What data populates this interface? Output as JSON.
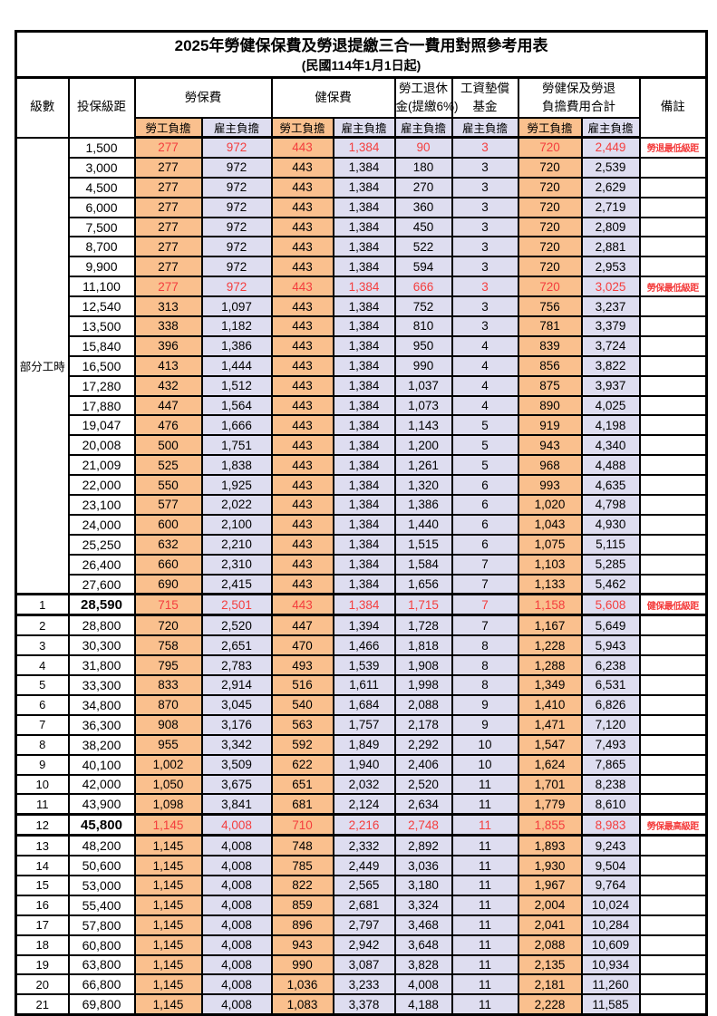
{
  "title": "2025年勞健保保費及勞退提繳三合一費用對照參考用表",
  "subtitle": "(民國114年1月1日起)",
  "header": {
    "level_label": "級數",
    "bracket_label": "投保級距",
    "labor_insurance_label": "勞保費",
    "health_insurance_label": "健保費",
    "pension_line1": "勞工退休",
    "pension_line2": "金(提繳6%)",
    "wage_fund_line1": "工資墊償",
    "wage_fund_line2": "基金",
    "total_line1": "勞健保及勞退",
    "total_line2": "負擔費用合計",
    "employee_label": "勞工負擔",
    "employer_label": "雇主負擔",
    "remark_label": "備註"
  },
  "part_time": {
    "label": "部分工時",
    "rowspan": 23
  },
  "colors": {
    "employee_bg": "#FAC08E",
    "employer_bg": "#DEDDF0",
    "highlight_red": "#f43d3d",
    "grid": "#000000"
  },
  "rows": [
    {
      "level": null,
      "bracket": "1,500",
      "values": [
        "277",
        "972",
        "443",
        "1,384",
        "90",
        "3",
        "720",
        "2,449"
      ],
      "remark": "勞退最低級距",
      "red": true,
      "thick": false,
      "bold": false
    },
    {
      "level": null,
      "bracket": "3,000",
      "values": [
        "277",
        "972",
        "443",
        "1,384",
        "180",
        "3",
        "720",
        "2,539"
      ],
      "remark": "",
      "red": false,
      "thick": false,
      "bold": false
    },
    {
      "level": null,
      "bracket": "4,500",
      "values": [
        "277",
        "972",
        "443",
        "1,384",
        "270",
        "3",
        "720",
        "2,629"
      ],
      "remark": "",
      "red": false,
      "thick": false,
      "bold": false
    },
    {
      "level": null,
      "bracket": "6,000",
      "values": [
        "277",
        "972",
        "443",
        "1,384",
        "360",
        "3",
        "720",
        "2,719"
      ],
      "remark": "",
      "red": false,
      "thick": false,
      "bold": false
    },
    {
      "level": null,
      "bracket": "7,500",
      "values": [
        "277",
        "972",
        "443",
        "1,384",
        "450",
        "3",
        "720",
        "2,809"
      ],
      "remark": "",
      "red": false,
      "thick": false,
      "bold": false
    },
    {
      "level": null,
      "bracket": "8,700",
      "values": [
        "277",
        "972",
        "443",
        "1,384",
        "522",
        "3",
        "720",
        "2,881"
      ],
      "remark": "",
      "red": false,
      "thick": false,
      "bold": false
    },
    {
      "level": null,
      "bracket": "9,900",
      "values": [
        "277",
        "972",
        "443",
        "1,384",
        "594",
        "3",
        "720",
        "2,953"
      ],
      "remark": "",
      "red": false,
      "thick": false,
      "bold": false
    },
    {
      "level": null,
      "bracket": "11,100",
      "values": [
        "277",
        "972",
        "443",
        "1,384",
        "666",
        "3",
        "720",
        "3,025"
      ],
      "remark": "勞保最低級距",
      "red": true,
      "thick": false,
      "bold": false
    },
    {
      "level": null,
      "bracket": "12,540",
      "values": [
        "313",
        "1,097",
        "443",
        "1,384",
        "752",
        "3",
        "756",
        "3,237"
      ],
      "remark": "",
      "red": false,
      "thick": false,
      "bold": false
    },
    {
      "level": null,
      "bracket": "13,500",
      "values": [
        "338",
        "1,182",
        "443",
        "1,384",
        "810",
        "3",
        "781",
        "3,379"
      ],
      "remark": "",
      "red": false,
      "thick": false,
      "bold": false
    },
    {
      "level": null,
      "bracket": "15,840",
      "values": [
        "396",
        "1,386",
        "443",
        "1,384",
        "950",
        "4",
        "839",
        "3,724"
      ],
      "remark": "",
      "red": false,
      "thick": false,
      "bold": false
    },
    {
      "level": null,
      "bracket": "16,500",
      "values": [
        "413",
        "1,444",
        "443",
        "1,384",
        "990",
        "4",
        "856",
        "3,822"
      ],
      "remark": "",
      "red": false,
      "thick": false,
      "bold": false
    },
    {
      "level": null,
      "bracket": "17,280",
      "values": [
        "432",
        "1,512",
        "443",
        "1,384",
        "1,037",
        "4",
        "875",
        "3,937"
      ],
      "remark": "",
      "red": false,
      "thick": false,
      "bold": false
    },
    {
      "level": null,
      "bracket": "17,880",
      "values": [
        "447",
        "1,564",
        "443",
        "1,384",
        "1,073",
        "4",
        "890",
        "4,025"
      ],
      "remark": "",
      "red": false,
      "thick": false,
      "bold": false
    },
    {
      "level": null,
      "bracket": "19,047",
      "values": [
        "476",
        "1,666",
        "443",
        "1,384",
        "1,143",
        "5",
        "919",
        "4,198"
      ],
      "remark": "",
      "red": false,
      "thick": false,
      "bold": false
    },
    {
      "level": null,
      "bracket": "20,008",
      "values": [
        "500",
        "1,751",
        "443",
        "1,384",
        "1,200",
        "5",
        "943",
        "4,340"
      ],
      "remark": "",
      "red": false,
      "thick": false,
      "bold": false
    },
    {
      "level": null,
      "bracket": "21,009",
      "values": [
        "525",
        "1,838",
        "443",
        "1,384",
        "1,261",
        "5",
        "968",
        "4,488"
      ],
      "remark": "",
      "red": false,
      "thick": false,
      "bold": false
    },
    {
      "level": null,
      "bracket": "22,000",
      "values": [
        "550",
        "1,925",
        "443",
        "1,384",
        "1,320",
        "6",
        "993",
        "4,635"
      ],
      "remark": "",
      "red": false,
      "thick": false,
      "bold": false
    },
    {
      "level": null,
      "bracket": "23,100",
      "values": [
        "577",
        "2,022",
        "443",
        "1,384",
        "1,386",
        "6",
        "1,020",
        "4,798"
      ],
      "remark": "",
      "red": false,
      "thick": false,
      "bold": false
    },
    {
      "level": null,
      "bracket": "24,000",
      "values": [
        "600",
        "2,100",
        "443",
        "1,384",
        "1,440",
        "6",
        "1,043",
        "4,930"
      ],
      "remark": "",
      "red": false,
      "thick": false,
      "bold": false
    },
    {
      "level": null,
      "bracket": "25,250",
      "values": [
        "632",
        "2,210",
        "443",
        "1,384",
        "1,515",
        "6",
        "1,075",
        "5,115"
      ],
      "remark": "",
      "red": false,
      "thick": false,
      "bold": false
    },
    {
      "level": null,
      "bracket": "26,400",
      "values": [
        "660",
        "2,310",
        "443",
        "1,384",
        "1,584",
        "7",
        "1,103",
        "5,285"
      ],
      "remark": "",
      "red": false,
      "thick": false,
      "bold": false
    },
    {
      "level": null,
      "bracket": "27,600",
      "values": [
        "690",
        "2,415",
        "443",
        "1,384",
        "1,656",
        "7",
        "1,133",
        "5,462"
      ],
      "remark": "",
      "red": false,
      "thick": false,
      "bold": false
    },
    {
      "level": "1",
      "bracket": "28,590",
      "values": [
        "715",
        "2,501",
        "443",
        "1,384",
        "1,715",
        "7",
        "1,158",
        "5,608"
      ],
      "remark": "健保最低級距",
      "red": true,
      "thick": true,
      "bold": true
    },
    {
      "level": "2",
      "bracket": "28,800",
      "values": [
        "720",
        "2,520",
        "447",
        "1,394",
        "1,728",
        "7",
        "1,167",
        "5,649"
      ],
      "remark": "",
      "red": false,
      "thick": false,
      "bold": false
    },
    {
      "level": "3",
      "bracket": "30,300",
      "values": [
        "758",
        "2,651",
        "470",
        "1,466",
        "1,818",
        "8",
        "1,228",
        "5,943"
      ],
      "remark": "",
      "red": false,
      "thick": false,
      "bold": false
    },
    {
      "level": "4",
      "bracket": "31,800",
      "values": [
        "795",
        "2,783",
        "493",
        "1,539",
        "1,908",
        "8",
        "1,288",
        "6,238"
      ],
      "remark": "",
      "red": false,
      "thick": false,
      "bold": false
    },
    {
      "level": "5",
      "bracket": "33,300",
      "values": [
        "833",
        "2,914",
        "516",
        "1,611",
        "1,998",
        "8",
        "1,349",
        "6,531"
      ],
      "remark": "",
      "red": false,
      "thick": false,
      "bold": false
    },
    {
      "level": "6",
      "bracket": "34,800",
      "values": [
        "870",
        "3,045",
        "540",
        "1,684",
        "2,088",
        "9",
        "1,410",
        "6,826"
      ],
      "remark": "",
      "red": false,
      "thick": false,
      "bold": false
    },
    {
      "level": "7",
      "bracket": "36,300",
      "values": [
        "908",
        "3,176",
        "563",
        "1,757",
        "2,178",
        "9",
        "1,471",
        "7,120"
      ],
      "remark": "",
      "red": false,
      "thick": false,
      "bold": false
    },
    {
      "level": "8",
      "bracket": "38,200",
      "values": [
        "955",
        "3,342",
        "592",
        "1,849",
        "2,292",
        "10",
        "1,547",
        "7,493"
      ],
      "remark": "",
      "red": false,
      "thick": false,
      "bold": false
    },
    {
      "level": "9",
      "bracket": "40,100",
      "values": [
        "1,002",
        "3,509",
        "622",
        "1,940",
        "2,406",
        "10",
        "1,624",
        "7,865"
      ],
      "remark": "",
      "red": false,
      "thick": false,
      "bold": false
    },
    {
      "level": "10",
      "bracket": "42,000",
      "values": [
        "1,050",
        "3,675",
        "651",
        "2,032",
        "2,520",
        "11",
        "1,701",
        "8,238"
      ],
      "remark": "",
      "red": false,
      "thick": false,
      "bold": false
    },
    {
      "level": "11",
      "bracket": "43,900",
      "values": [
        "1,098",
        "3,841",
        "681",
        "2,124",
        "2,634",
        "11",
        "1,779",
        "8,610"
      ],
      "remark": "",
      "red": false,
      "thick": false,
      "bold": false
    },
    {
      "level": "12",
      "bracket": "45,800",
      "values": [
        "1,145",
        "4,008",
        "710",
        "2,216",
        "2,748",
        "11",
        "1,855",
        "8,983"
      ],
      "remark": "勞保最高級距",
      "red": true,
      "thick": true,
      "bold": true
    },
    {
      "level": "13",
      "bracket": "48,200",
      "values": [
        "1,145",
        "4,008",
        "748",
        "2,332",
        "2,892",
        "11",
        "1,893",
        "9,243"
      ],
      "remark": "",
      "red": false,
      "thick": false,
      "bold": false
    },
    {
      "level": "14",
      "bracket": "50,600",
      "values": [
        "1,145",
        "4,008",
        "785",
        "2,449",
        "3,036",
        "11",
        "1,930",
        "9,504"
      ],
      "remark": "",
      "red": false,
      "thick": false,
      "bold": false
    },
    {
      "level": "15",
      "bracket": "53,000",
      "values": [
        "1,145",
        "4,008",
        "822",
        "2,565",
        "3,180",
        "11",
        "1,967",
        "9,764"
      ],
      "remark": "",
      "red": false,
      "thick": false,
      "bold": false
    },
    {
      "level": "16",
      "bracket": "55,400",
      "values": [
        "1,145",
        "4,008",
        "859",
        "2,681",
        "3,324",
        "11",
        "2,004",
        "10,024"
      ],
      "remark": "",
      "red": false,
      "thick": false,
      "bold": false
    },
    {
      "level": "17",
      "bracket": "57,800",
      "values": [
        "1,145",
        "4,008",
        "896",
        "2,797",
        "3,468",
        "11",
        "2,041",
        "10,284"
      ],
      "remark": "",
      "red": false,
      "thick": false,
      "bold": false
    },
    {
      "level": "18",
      "bracket": "60,800",
      "values": [
        "1,145",
        "4,008",
        "943",
        "2,942",
        "3,648",
        "11",
        "2,088",
        "10,609"
      ],
      "remark": "",
      "red": false,
      "thick": false,
      "bold": false
    },
    {
      "level": "19",
      "bracket": "63,800",
      "values": [
        "1,145",
        "4,008",
        "990",
        "3,087",
        "3,828",
        "11",
        "2,135",
        "10,934"
      ],
      "remark": "",
      "red": false,
      "thick": false,
      "bold": false
    },
    {
      "level": "20",
      "bracket": "66,800",
      "values": [
        "1,145",
        "4,008",
        "1,036",
        "3,233",
        "4,008",
        "11",
        "2,181",
        "11,260"
      ],
      "remark": "",
      "red": false,
      "thick": false,
      "bold": false
    },
    {
      "level": "21",
      "bracket": "69,800",
      "values": [
        "1,145",
        "4,008",
        "1,083",
        "3,378",
        "4,188",
        "11",
        "2,228",
        "11,585"
      ],
      "remark": "",
      "red": false,
      "thick": false,
      "bold": false
    }
  ]
}
